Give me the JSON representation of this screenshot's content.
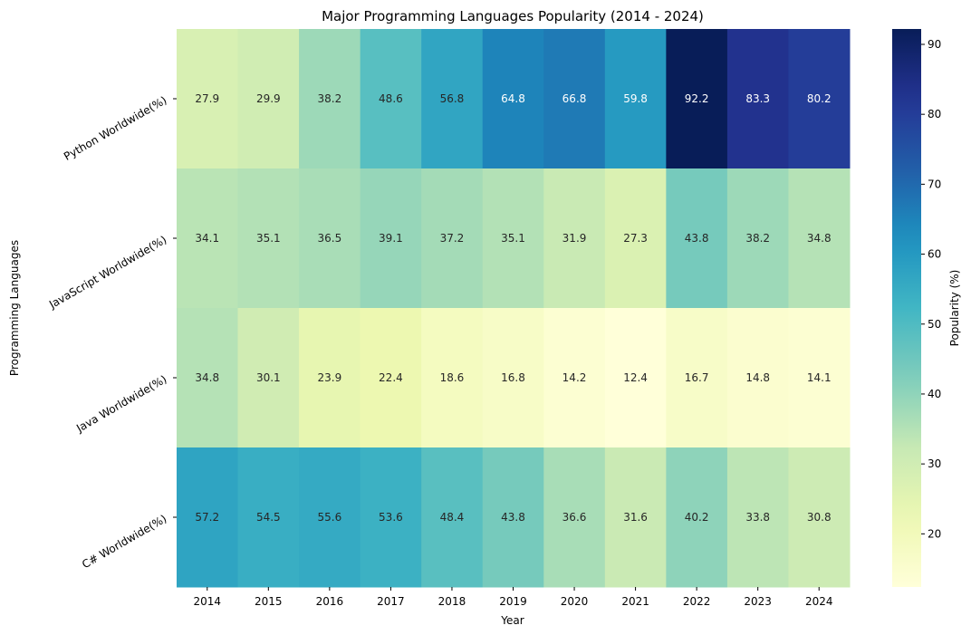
{
  "chart_data": {
    "type": "heatmap",
    "title": "Major Programming Languages Popularity (2014 - 2024)",
    "xlabel": "Year",
    "ylabel": "Programming Languages",
    "x": [
      "2014",
      "2015",
      "2016",
      "2017",
      "2018",
      "2019",
      "2020",
      "2021",
      "2022",
      "2023",
      "2024"
    ],
    "y": [
      "Python Worldwide(%)",
      "JavaScript Worldwide(%)",
      "Java Worldwide(%)",
      "C# Worldwide(%)"
    ],
    "values": [
      [
        27.9,
        29.9,
        38.2,
        48.6,
        56.8,
        64.8,
        66.8,
        59.8,
        92.2,
        83.3,
        80.2
      ],
      [
        34.1,
        35.1,
        36.5,
        39.1,
        37.2,
        35.1,
        31.9,
        27.3,
        43.8,
        38.2,
        34.8
      ],
      [
        34.8,
        30.1,
        23.9,
        22.4,
        18.6,
        16.8,
        14.2,
        12.4,
        16.7,
        14.8,
        14.1
      ],
      [
        57.2,
        54.5,
        55.6,
        53.6,
        48.4,
        43.8,
        36.6,
        31.6,
        40.2,
        33.8,
        30.8
      ]
    ],
    "colorbar": {
      "label": "Popularity (%)",
      "range": [
        12.4,
        92.2
      ],
      "ticks": [
        20,
        30,
        40,
        50,
        60,
        70,
        80,
        90
      ],
      "colormap": "YlGnBu"
    }
  }
}
